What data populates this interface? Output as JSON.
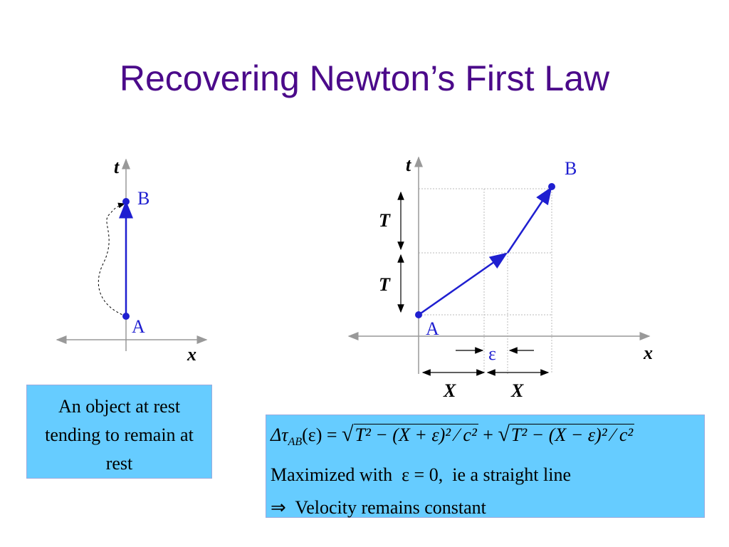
{
  "title": "Recovering Newton’s First Law",
  "left_diagram": {
    "t_axis": "t",
    "x_axis": "x",
    "point_a": "A",
    "point_b": "B"
  },
  "right_diagram": {
    "t_axis": "t",
    "x_axis": "x",
    "point_a": "A",
    "point_b": "B",
    "interval_1": "T",
    "interval_2": "T",
    "offset": "ε",
    "distance_1": "X",
    "distance_2": "X"
  },
  "left_box": {
    "text": "An object at rest tending to remain at rest"
  },
  "right_box": {
    "formula": {
      "lhs": "Δτ",
      "lhs_sub": "AB",
      "arg": "(ε) = ",
      "term1": "T² − (X + ε)² ⁄ c²",
      "plus": " + ",
      "term2": "T² − (X − ε)² ⁄ c²"
    },
    "line2": "Maximized with  ε = 0,  ie a straight line",
    "line3": "⇒  Velocity remains constant"
  }
}
